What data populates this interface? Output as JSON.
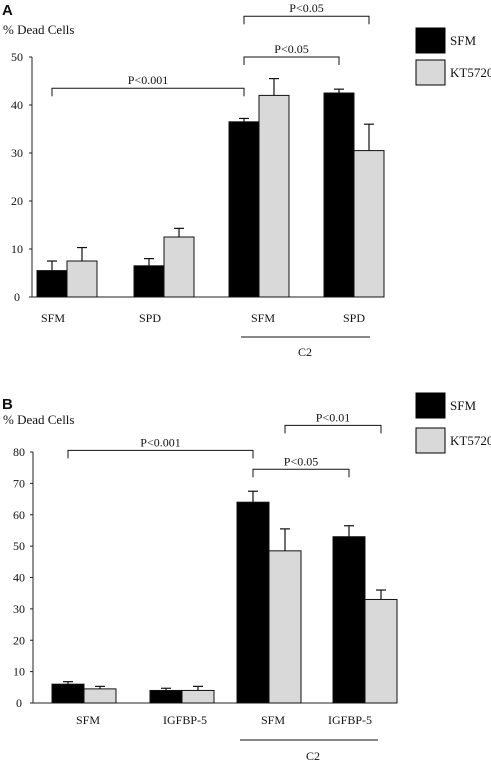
{
  "colors": {
    "sfm": "#000000",
    "kt5720": "#d9d9d9",
    "axis": "#222222"
  },
  "chart_data": [
    {
      "type": "bar",
      "panel": "A",
      "ylabel": "% Dead Cells",
      "ylim": [
        0,
        50
      ],
      "yticks": [
        0,
        10,
        20,
        30,
        40,
        50
      ],
      "grid": false,
      "legend_position": "top-right",
      "categories": [
        "SFM",
        "SPD",
        "SFM",
        "SPD"
      ],
      "group_label": "C2",
      "series": [
        {
          "name": "SFM",
          "values": [
            5.5,
            6.5,
            36.5,
            42.5
          ],
          "errors": [
            2,
            1.5,
            0.7,
            0.8
          ]
        },
        {
          "name": "KT5720",
          "values": [
            7.5,
            12.5,
            42,
            30.5
          ],
          "errors": [
            2.8,
            1.8,
            3.5,
            5.5
          ]
        }
      ],
      "annotations": [
        {
          "text": "P<0.001",
          "from": [
            0,
            0
          ],
          "to": [
            2,
            0
          ],
          "level": 43.5
        },
        {
          "text": "P<0.05",
          "from": [
            2,
            0
          ],
          "to": [
            3,
            0
          ],
          "level": 50
        },
        {
          "text": "P<0.05",
          "from": [
            2,
            0
          ],
          "to": [
            3,
            1
          ],
          "level": 58.5
        }
      ]
    },
    {
      "type": "bar",
      "panel": "B",
      "ylabel": "% Dead Cells",
      "ylim": [
        0,
        80
      ],
      "yticks": [
        0,
        10,
        20,
        30,
        40,
        50,
        60,
        70,
        80
      ],
      "grid": false,
      "legend_position": "top-right",
      "categories": [
        "SFM",
        "IGFBP-5",
        "SFM",
        "IGFBP-5"
      ],
      "group_label": "C2",
      "series": [
        {
          "name": "SFM",
          "values": [
            6,
            4,
            64,
            53
          ],
          "errors": [
            0.8,
            0.7,
            3.5,
            3.5
          ]
        },
        {
          "name": "KT5720",
          "values": [
            4.5,
            4,
            48.5,
            33
          ],
          "errors": [
            0.8,
            1.3,
            7,
            3
          ]
        }
      ],
      "annotations": [
        {
          "text": "P<0.001",
          "from": [
            0,
            0
          ],
          "to": [
            2,
            0
          ],
          "level": 80.5
        },
        {
          "text": "P<0.05",
          "from": [
            2,
            0
          ],
          "to": [
            3,
            0
          ],
          "level": 74.5
        },
        {
          "text": "P<0.01",
          "from": [
            2,
            1
          ],
          "to": [
            3,
            1
          ],
          "level": 88.5
        }
      ]
    }
  ]
}
